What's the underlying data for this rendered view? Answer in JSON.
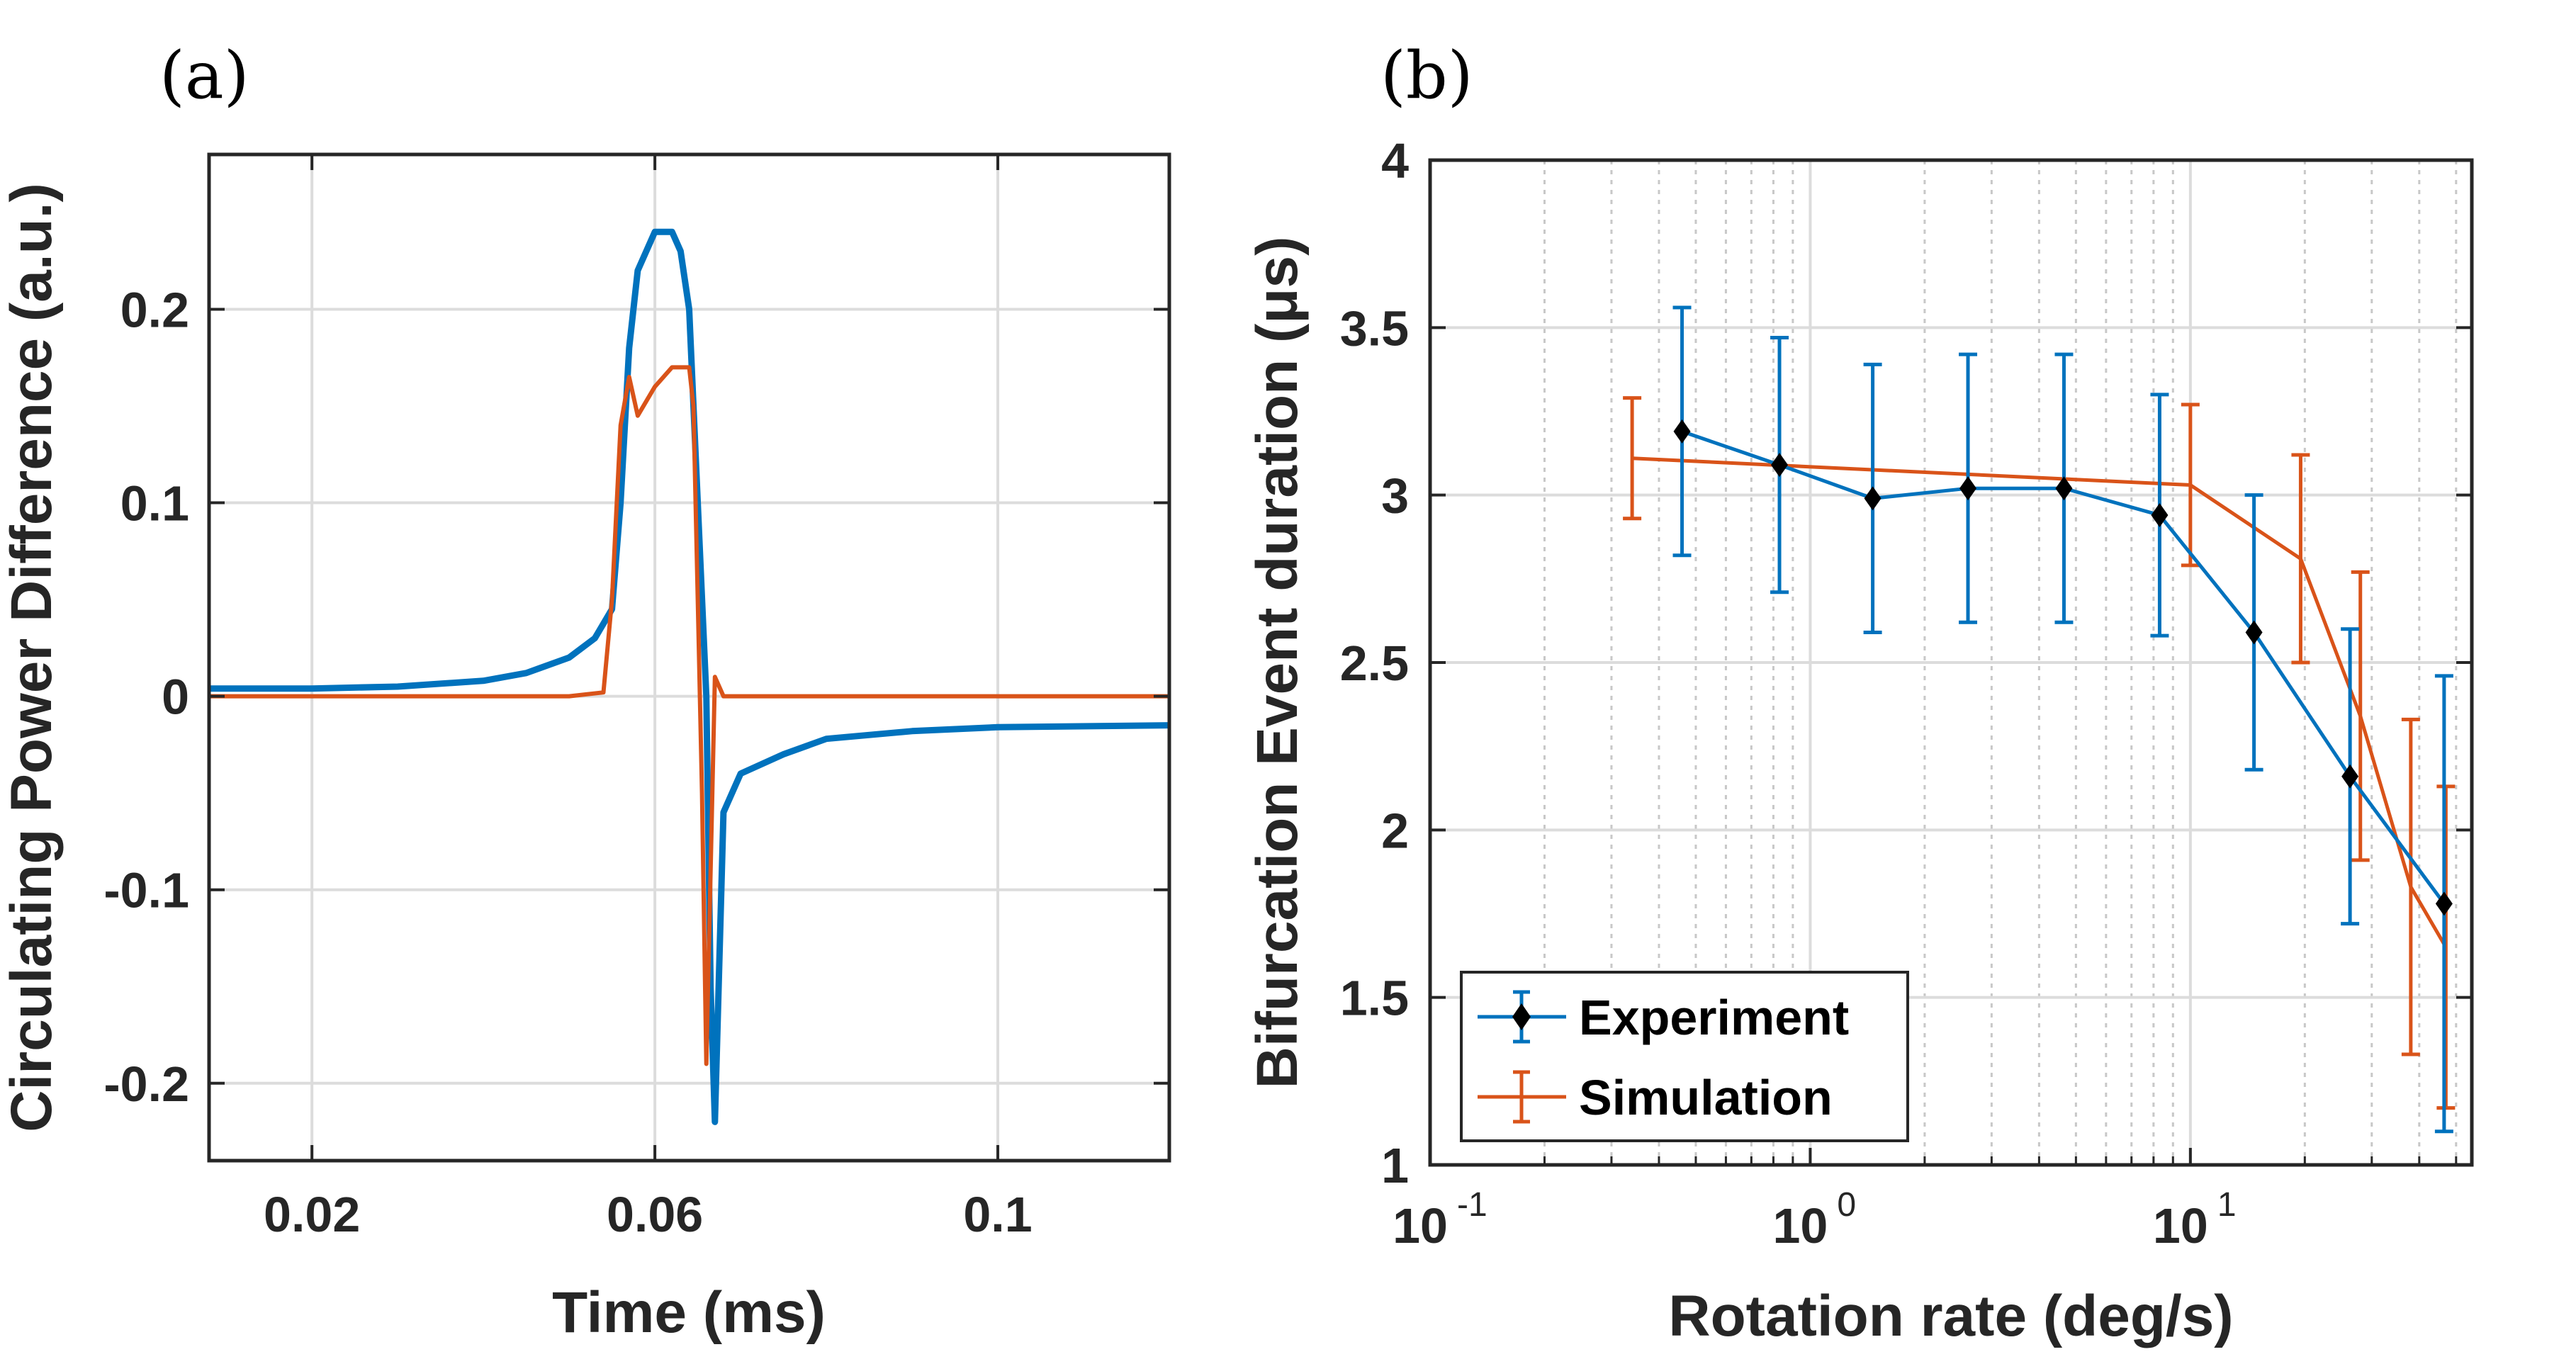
{
  "colors": {
    "experiment": "#0072BD",
    "simulation": "#D95319",
    "marker": "#000000",
    "grid": "#dcdcdc",
    "axis": "#262626"
  },
  "chart_data": [
    {
      "panel": "(a)",
      "type": "line",
      "xlabel": "Time (ms)",
      "ylabel": "Circulating Power Difference (a.u.)",
      "xlim": [
        0.008,
        0.12
      ],
      "ylim": [
        -0.24,
        0.28
      ],
      "xticks": [
        0.02,
        0.06,
        0.1
      ],
      "xticklabels": [
        "0.02",
        "0.06",
        "0.1"
      ],
      "yticks": [
        -0.2,
        -0.1,
        0,
        0.1,
        0.2
      ],
      "yticklabels": [
        "-0.2",
        "-0.1",
        "0",
        "0.1",
        "0.2"
      ],
      "grid": true,
      "series": [
        {
          "name": "Experiment",
          "color": "#0072BD",
          "x": [
            0.008,
            0.02,
            0.03,
            0.04,
            0.045,
            0.05,
            0.053,
            0.055,
            0.056,
            0.057,
            0.058,
            0.06,
            0.062,
            0.063,
            0.064,
            0.065,
            0.066,
            0.0665,
            0.067,
            0.068,
            0.07,
            0.075,
            0.08,
            0.09,
            0.1,
            0.12
          ],
          "y": [
            0.004,
            0.004,
            0.005,
            0.008,
            0.012,
            0.02,
            0.03,
            0.045,
            0.1,
            0.18,
            0.22,
            0.24,
            0.24,
            0.23,
            0.2,
            0.1,
            0.0,
            -0.15,
            -0.22,
            -0.06,
            -0.04,
            -0.03,
            -0.022,
            -0.018,
            -0.016,
            -0.015
          ]
        },
        {
          "name": "Simulation",
          "color": "#D95319",
          "x": [
            0.008,
            0.05,
            0.054,
            0.055,
            0.056,
            0.057,
            0.058,
            0.06,
            0.062,
            0.064,
            0.0645,
            0.065,
            0.0655,
            0.066,
            0.067,
            0.068,
            0.12
          ],
          "y": [
            0.0,
            0.0,
            0.002,
            0.05,
            0.14,
            0.165,
            0.145,
            0.16,
            0.17,
            0.17,
            0.15,
            0.05,
            -0.05,
            -0.19,
            0.01,
            0.0,
            0.0
          ]
        }
      ]
    },
    {
      "panel": "(b)",
      "type": "line",
      "xscale": "log",
      "xlabel": "Rotation rate (deg/s)",
      "ylabel": "Bifurcation Event duration (μs)",
      "xlim": [
        0.1,
        55
      ],
      "ylim": [
        1,
        4
      ],
      "xticks": [
        0.1,
        1,
        10
      ],
      "xticklabels": [
        {
          "base": "10",
          "exp": "-1"
        },
        {
          "base": "10",
          "exp": "0"
        },
        {
          "base": "10",
          "exp": "1"
        }
      ],
      "yticks": [
        1,
        1.5,
        2,
        2.5,
        3,
        3.5,
        4
      ],
      "yticklabels": [
        "1",
        "1.5",
        "2",
        "2.5",
        "3",
        "3.5",
        "4"
      ],
      "grid": true,
      "legend": {
        "location": "bottom-left",
        "entries": [
          "Experiment",
          "Simulation"
        ]
      },
      "series": [
        {
          "name": "Experiment",
          "color": "#0072BD",
          "marker": "diamond",
          "x": [
            0.46,
            0.83,
            1.46,
            2.6,
            4.65,
            8.3,
            14.7,
            26.3,
            46.5
          ],
          "y": [
            3.19,
            3.09,
            2.99,
            3.02,
            3.02,
            2.94,
            2.59,
            2.16,
            1.78
          ],
          "err": [
            0.37,
            0.38,
            0.4,
            0.4,
            0.4,
            0.36,
            0.41,
            0.44,
            0.68
          ]
        },
        {
          "name": "Simulation",
          "color": "#D95319",
          "marker": "none",
          "x": [
            0.34,
            10,
            19.5,
            28,
            38,
            47
          ],
          "y": [
            3.11,
            3.03,
            2.81,
            2.34,
            1.83,
            1.65
          ],
          "err": [
            0.18,
            0.24,
            0.31,
            0.43,
            0.5,
            0.48
          ]
        }
      ]
    }
  ]
}
